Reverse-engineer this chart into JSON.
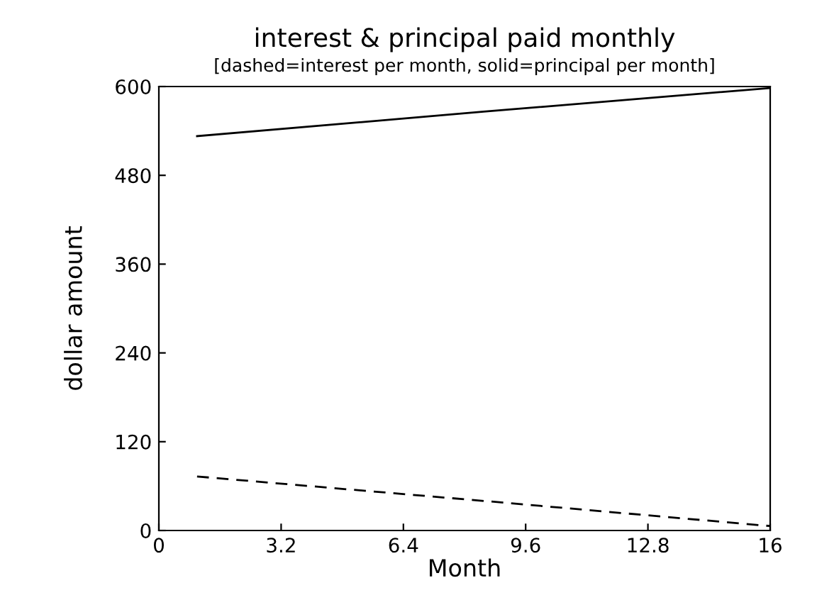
{
  "chart_data": {
    "type": "line",
    "title": "interest & principal paid monthly",
    "subtitle": "[dashed=interest per month, solid=principal per month]",
    "xlabel": "Month",
    "ylabel": "dollar amount",
    "series": [
      {
        "x": [
          1,
          8.5,
          16
        ],
        "values": [
          73,
          40,
          6
        ],
        "color": "#000000",
        "line_style": "dashed"
      },
      {
        "x": [
          1,
          8.5,
          16
        ],
        "values": [
          533,
          566,
          598
        ],
        "color": "#000000",
        "line_style": "solid"
      }
    ],
    "xlim": [
      0,
      16
    ],
    "xticks": [
      0,
      3.2,
      6.4,
      9.6,
      12.8,
      16
    ],
    "ylim": [
      0,
      600
    ],
    "yticks": [
      0,
      120,
      240,
      360,
      480,
      600
    ],
    "grid": false,
    "marker": "none"
  }
}
